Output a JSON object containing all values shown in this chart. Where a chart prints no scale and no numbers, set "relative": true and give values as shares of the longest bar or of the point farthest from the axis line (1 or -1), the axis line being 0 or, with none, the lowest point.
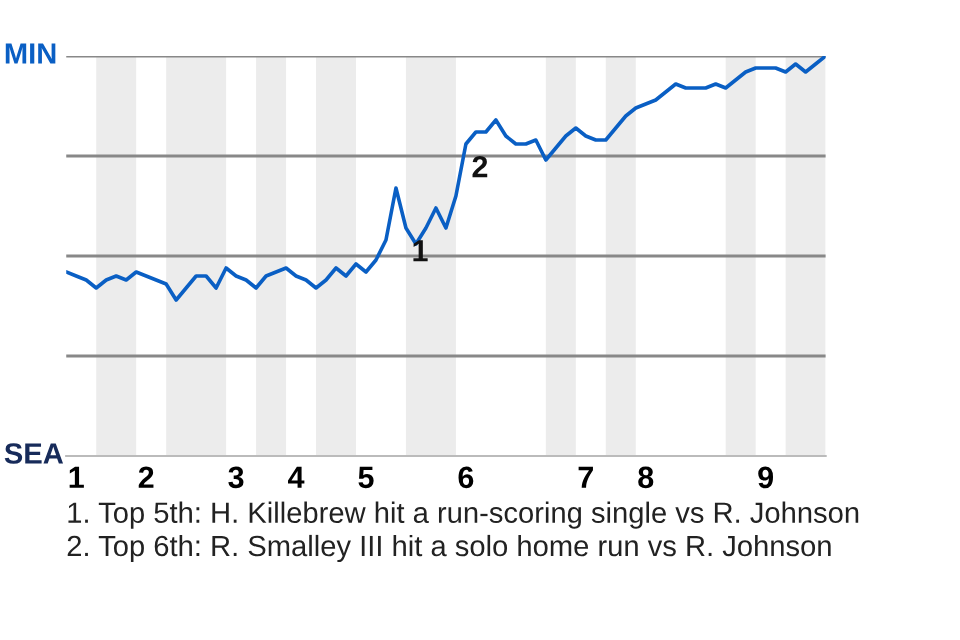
{
  "chart_data": {
    "type": "line",
    "relative": true,
    "grid": "y",
    "categories": [
      null,
      "1",
      null,
      null,
      null,
      null,
      null,
      null,
      "2",
      null,
      null,
      null,
      null,
      null,
      null,
      null,
      null,
      "3",
      null,
      null,
      null,
      null,
      null,
      "4",
      null,
      null,
      null,
      null,
      null,
      null,
      "5",
      null,
      null,
      null,
      null,
      null,
      null,
      null,
      null,
      null,
      "6",
      null,
      null,
      null,
      null,
      null,
      null,
      null,
      null,
      null,
      null,
      null,
      "7",
      null,
      null,
      null,
      null,
      null,
      "8",
      null,
      null,
      null,
      null,
      null,
      null,
      null,
      null,
      null,
      null,
      null,
      "9",
      null,
      null,
      null,
      null,
      null,
      null
    ],
    "series": [
      {
        "color": "#0a5fc4",
        "values": [
          0.46,
          0.45,
          0.44,
          0.42,
          0.44,
          0.45,
          0.44,
          0.46,
          0.45,
          0.44,
          0.43,
          0.39,
          0.42,
          0.45,
          0.45,
          0.42,
          0.47,
          0.45,
          0.44,
          0.42,
          0.45,
          0.46,
          0.47,
          0.45,
          0.44,
          0.42,
          0.44,
          0.47,
          0.45,
          0.48,
          0.46,
          0.49,
          0.54,
          0.67,
          0.57,
          0.53,
          0.57,
          0.62,
          0.57,
          0.65,
          0.78,
          0.81,
          0.81,
          0.84,
          0.8,
          0.78,
          0.78,
          0.79,
          0.74,
          0.77,
          0.8,
          0.82,
          0.8,
          0.79,
          0.79,
          0.82,
          0.85,
          0.87,
          0.88,
          0.89,
          0.91,
          0.93,
          0.92,
          0.92,
          0.92,
          0.93,
          0.92,
          0.94,
          0.96,
          0.97,
          0.97,
          0.97,
          0.96,
          0.98,
          0.96,
          0.98,
          1
        ]
      }
    ],
    "annotations": [
      "MIN",
      "SEA",
      {
        "text": "1",
        "y": 0.57
      },
      {
        "text": "2",
        "y": 0.78
      },
      "1. Top 5th: H. Killebrew hit a run-scoring single vs R. Johnson",
      "2. Top 6th: R. Smalley III hit a solo home run vs R. Johnson"
    ]
  }
}
